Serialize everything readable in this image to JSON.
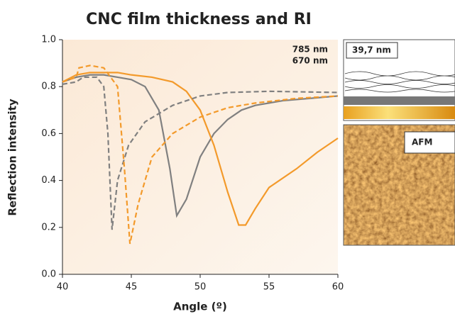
{
  "chart_data": {
    "type": "line",
    "title": "CNC film thickness and RI",
    "xlabel": "Angle (º)",
    "ylabel": "Reflection intensity",
    "xlim": [
      40,
      60
    ],
    "ylim": [
      0,
      1
    ],
    "xticks": [
      40,
      45,
      50,
      55,
      60
    ],
    "yticks": [
      {
        "value": 0,
        "label": "0.0"
      },
      0.2,
      0.4,
      0.6,
      0.8,
      {
        "value": 1,
        "label": "1.0"
      }
    ],
    "annotations": [
      "39,7 nm",
      "AFM"
    ],
    "series": [
      {
        "name": "785 nm",
        "color": "#808080",
        "dash": false,
        "x": [
          40,
          41,
          42,
          43,
          44,
          45,
          46,
          47,
          47.8,
          48.3,
          49,
          50,
          51,
          52,
          53,
          54,
          56,
          58,
          60
        ],
        "values": [
          0.82,
          0.84,
          0.85,
          0.85,
          0.84,
          0.83,
          0.8,
          0.7,
          0.45,
          0.25,
          0.32,
          0.5,
          0.6,
          0.66,
          0.7,
          0.72,
          0.74,
          0.75,
          0.76
        ]
      },
      {
        "name": "670 nm",
        "color": "#f39a2b",
        "dash": false,
        "x": [
          40,
          41,
          42,
          44,
          45,
          46.5,
          48,
          49,
          50,
          51,
          52,
          52.8,
          53.3,
          54,
          55,
          57,
          58.5,
          60
        ],
        "values": [
          0.82,
          0.85,
          0.86,
          0.86,
          0.85,
          0.84,
          0.82,
          0.78,
          0.7,
          0.55,
          0.35,
          0.21,
          0.21,
          0.28,
          0.37,
          0.45,
          0.52,
          0.58
        ]
      },
      {
        "color": "#808080",
        "dash": true,
        "x": [
          40,
          41,
          41.5,
          42.5,
          43,
          43.3,
          43.6,
          44,
          44.8,
          46,
          48,
          50,
          52,
          55,
          60
        ],
        "values": [
          0.81,
          0.82,
          0.84,
          0.84,
          0.8,
          0.6,
          0.19,
          0.4,
          0.55,
          0.65,
          0.72,
          0.76,
          0.775,
          0.78,
          0.775
        ]
      },
      {
        "color": "#f39a2b",
        "dash": true,
        "x": [
          40,
          41,
          41.2,
          42,
          43,
          44,
          44.5,
          44.9,
          45.5,
          46.5,
          48,
          50,
          52,
          54,
          57,
          60
        ],
        "values": [
          0.82,
          0.84,
          0.88,
          0.89,
          0.88,
          0.8,
          0.45,
          0.13,
          0.3,
          0.5,
          0.6,
          0.67,
          0.71,
          0.73,
          0.75,
          0.76
        ]
      }
    ]
  }
}
